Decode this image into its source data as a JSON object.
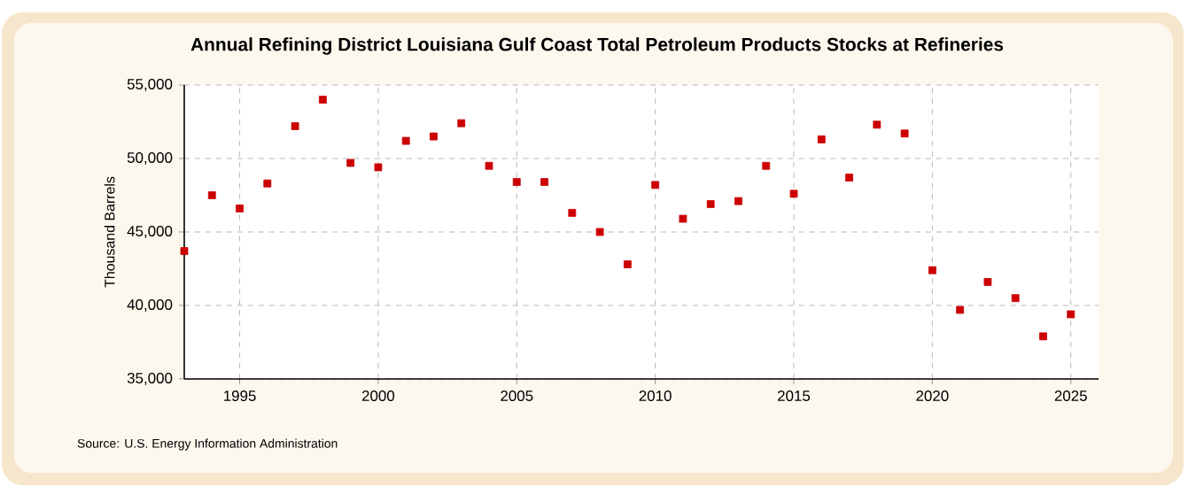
{
  "chart_data": {
    "type": "scatter",
    "title": "Annual Refining District Louisiana Gulf Coast Total Petroleum Products Stocks at Refineries",
    "ylabel": "Thousand Barrels",
    "annotations": [
      "Source: U.S. Energy Information Administration"
    ],
    "x": [
      1993,
      1994,
      1995,
      1996,
      1997,
      1998,
      1999,
      2000,
      2001,
      2002,
      2003,
      2004,
      2005,
      2006,
      2007,
      2008,
      2009,
      2010,
      2011,
      2012,
      2013,
      2014,
      2015,
      2016,
      2017,
      2018,
      2019,
      2020,
      2021,
      2022,
      2023,
      2024,
      2025
    ],
    "series": [
      {
        "color": "#cc0000",
        "values": [
          43700,
          47500,
          46600,
          48300,
          52200,
          54000,
          49700,
          49400,
          51200,
          51500,
          52400,
          49500,
          48400,
          48400,
          46300,
          45000,
          42800,
          48200,
          45900,
          46900,
          47100,
          49500,
          47600,
          51300,
          48700,
          52300,
          51700,
          42400,
          39700,
          41600,
          40500,
          37900,
          39400
        ]
      }
    ],
    "xlim": [
      1993,
      2026
    ],
    "ylim": [
      35000,
      55000
    ],
    "xticks": [
      1995,
      2000,
      2005,
      2010,
      2015,
      2020,
      2025
    ],
    "yticks": [
      {
        "value": 35000,
        "label": "35,000"
      },
      {
        "value": 40000,
        "label": "40,000"
      },
      {
        "value": 45000,
        "label": "45,000"
      },
      {
        "value": 50000,
        "label": "50,000"
      },
      {
        "value": 55000,
        "label": "55,000"
      }
    ],
    "grid": true,
    "marker": "square"
  }
}
